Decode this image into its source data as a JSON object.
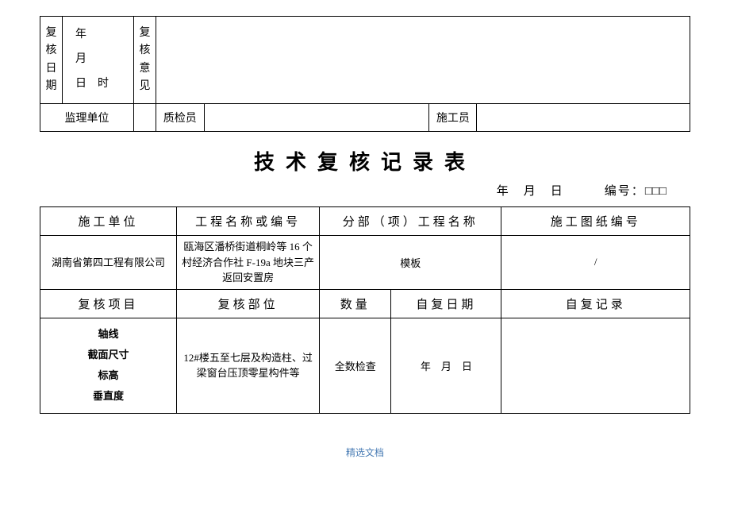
{
  "top": {
    "review_date_label": "复\n核\n日\n期",
    "date_lines": "年\n月\n日　时",
    "review_opinion_label": "复\n核\n意\n见",
    "supervisor_unit": "监理单位",
    "inspector": "质检员",
    "constructor": "施工员"
  },
  "title": "技术复核记录表",
  "meta": {
    "date": "年　月　日",
    "code_label": "编号："
  },
  "headers1": {
    "c1": "施工单位",
    "c2": "工程名称或编号",
    "c3": "分部（项）工程名称",
    "c4": "施工图纸编号"
  },
  "row1": {
    "c1": "湖南省第四工程有限公司",
    "c2": "瓯海区潘桥街道桐岭等 16 个村经济合作社 F-19a 地块三产返回安置房",
    "c3": "模板",
    "c4": "/"
  },
  "headers2": {
    "c1": "复核项目",
    "c2": "复核部位",
    "c3": "数量",
    "c4": "自复日期",
    "c5": "自复记录"
  },
  "row2": {
    "items": [
      "轴线",
      "截面尺寸",
      "标高",
      "垂直度"
    ],
    "c2": "12#楼五至七层及构造柱、过梁窗台压顶零星构件等",
    "c3": "全数检查",
    "c4": "年　月　日",
    "c5": ""
  },
  "footer": "精选文档"
}
